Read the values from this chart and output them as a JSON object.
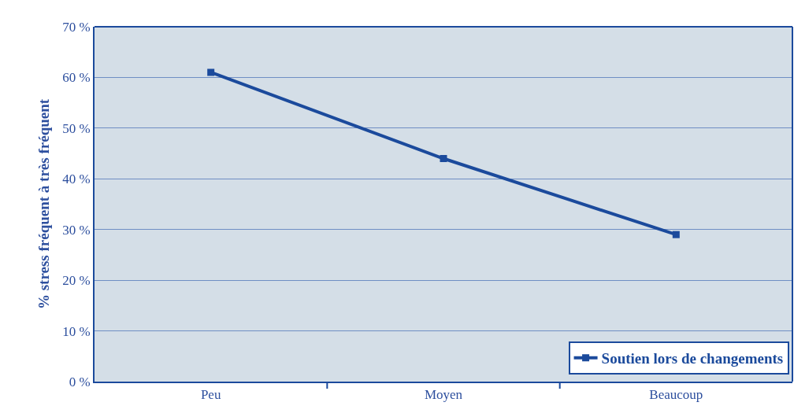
{
  "chart_data": {
    "type": "line",
    "ylabel": "% stress fréquent à très fréquent",
    "categories": [
      "Peu",
      "Moyen",
      "Beaucoup"
    ],
    "series": [
      {
        "name": "Soutien lors de changements",
        "color": "#1b4a9c",
        "values": [
          61,
          44,
          29
        ]
      }
    ],
    "ylim": [
      0,
      70
    ],
    "yticks": [
      {
        "value": 0,
        "label": "0 %"
      },
      {
        "value": 10,
        "label": "10 %"
      },
      {
        "value": 20,
        "label": "20 %"
      },
      {
        "value": 30,
        "label": "30 %"
      },
      {
        "value": 40,
        "label": "40 %"
      },
      {
        "value": 50,
        "label": "50 %"
      },
      {
        "value": 60,
        "label": "60 %"
      },
      {
        "value": 70,
        "label": "70 %"
      }
    ],
    "grid": "y",
    "legend": "bottom right",
    "marker": "square",
    "line_style": "solid"
  }
}
